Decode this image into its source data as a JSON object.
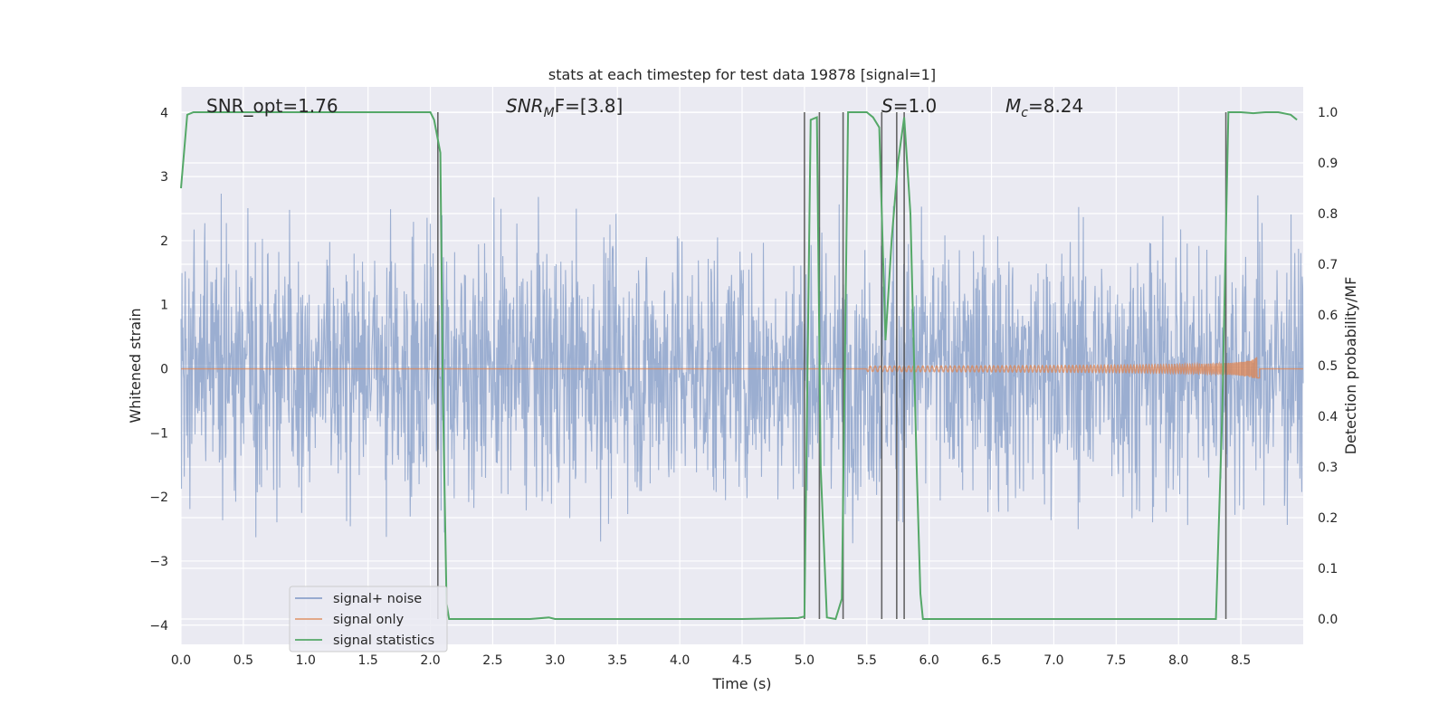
{
  "chart_data": {
    "type": "line",
    "title": "stats at each timestep for test data 19878 [signal=1]",
    "xlabel": "Time (s)",
    "ylabel": "Whitened strain",
    "ylabel_right": "Detection probability/MF",
    "xlim": [
      0.0,
      9.0
    ],
    "ylim": [
      -4.3,
      4.4
    ],
    "ylim_right": [
      -0.05,
      1.05
    ],
    "x_ticks": [
      "0.0",
      "0.5",
      "1.0",
      "1.5",
      "2.0",
      "2.5",
      "3.0",
      "3.5",
      "4.0",
      "4.5",
      "5.0",
      "5.5",
      "6.0",
      "6.5",
      "7.0",
      "7.5",
      "8.0",
      "8.5"
    ],
    "y_ticks": [
      "−4",
      "−3",
      "−2",
      "−1",
      "0",
      "1",
      "2",
      "3",
      "4"
    ],
    "y_ticks_right": [
      "0.0",
      "0.1",
      "0.2",
      "0.3",
      "0.4",
      "0.5",
      "0.6",
      "0.7",
      "0.8",
      "0.9",
      "1.0"
    ],
    "grid": true,
    "annotations": {
      "snr_opt": "SNR_opt=1.76",
      "snr_mf_base": "SNR",
      "snr_mf_sub": "M",
      "snr_mf_rest": "F=[3.8]",
      "s_base": "S",
      "s_rest": "=1.0",
      "mc_base": "M",
      "mc_sub": "c",
      "mc_rest": "=8.24"
    },
    "legend": {
      "placement": "lower-left",
      "entries": [
        "signal+ noise",
        "signal only",
        "signal statistics"
      ]
    },
    "series": [
      {
        "name": "signal+ noise",
        "color": "#4c72b0",
        "kind": "noise",
        "sigma": 1.0,
        "x_range": [
          0.0,
          9.0
        ]
      },
      {
        "name": "signal only",
        "color": "#dd8452",
        "kind": "chirp",
        "t_start": 5.5,
        "t_merge": 8.65,
        "peak_amplitude": 0.2
      },
      {
        "name": "signal statistics",
        "color": "#55a868",
        "axis": "right",
        "x": [
          0.0,
          0.05,
          0.1,
          0.15,
          0.2,
          0.5,
          1.0,
          1.5,
          2.0,
          2.03,
          2.08,
          2.1,
          2.13,
          2.15,
          2.2,
          2.5,
          2.8,
          2.95,
          3.0,
          3.5,
          4.0,
          4.5,
          4.95,
          5.0,
          5.05,
          5.1,
          5.13,
          5.18,
          5.25,
          5.3,
          5.35,
          5.5,
          5.55,
          5.6,
          5.65,
          5.7,
          5.75,
          5.8,
          5.85,
          5.9,
          5.93,
          5.95,
          6.0,
          6.5,
          7.0,
          7.5,
          8.0,
          8.3,
          8.35,
          8.4,
          8.45,
          8.5,
          8.6,
          8.7,
          8.8,
          8.9,
          8.95
        ],
        "values": [
          0.85,
          0.995,
          1.0,
          1.0,
          1.0,
          1.0,
          1.0,
          1.0,
          1.0,
          0.985,
          0.92,
          0.45,
          0.03,
          0.0,
          0.0,
          0.0,
          0.0,
          0.003,
          0.0,
          0.0,
          0.0,
          0.0,
          0.002,
          0.005,
          0.985,
          0.99,
          0.3,
          0.003,
          0.0,
          0.04,
          1.0,
          1.0,
          0.99,
          0.97,
          0.55,
          0.75,
          0.9,
          0.99,
          0.8,
          0.3,
          0.05,
          0.0,
          0.0,
          0.0,
          0.0,
          0.0,
          0.0,
          0.0,
          0.4,
          1.0,
          1.0,
          1.0,
          0.998,
          1.0,
          1.0,
          0.995,
          0.985
        ]
      }
    ],
    "vlines_x": [
      2.06,
      5.0,
      5.12,
      5.31,
      5.62,
      5.74,
      5.8,
      8.38
    ],
    "vline_color": "#555555"
  }
}
